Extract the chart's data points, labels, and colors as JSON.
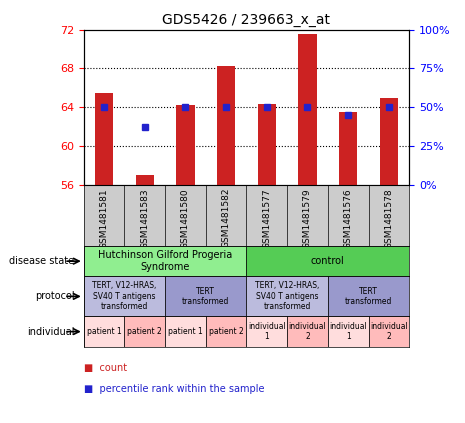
{
  "title": "GDS5426 / 239663_x_at",
  "samples": [
    "GSM1481581",
    "GSM1481583",
    "GSM1481580",
    "GSM1481582",
    "GSM1481577",
    "GSM1481579",
    "GSM1481576",
    "GSM1481578"
  ],
  "counts": [
    65.5,
    57.0,
    64.2,
    68.2,
    64.3,
    71.5,
    63.5,
    65.0
  ],
  "percentiles": [
    50,
    37,
    50,
    50,
    50,
    50,
    45,
    50
  ],
  "ylim": [
    56,
    72
  ],
  "y_ticks": [
    56,
    60,
    64,
    68,
    72
  ],
  "y2_ticks": [
    0,
    25,
    50,
    75,
    100
  ],
  "y2_ticklabels": [
    "0%",
    "25%",
    "50%",
    "75%",
    "100%"
  ],
  "disease_state": [
    {
      "label": "Hutchinson Gilford Progeria\nSyndrome",
      "start": 0,
      "end": 4,
      "color": "#90EE90"
    },
    {
      "label": "control",
      "start": 4,
      "end": 8,
      "color": "#55CC55"
    }
  ],
  "protocol": [
    {
      "label": "TERT, V12-HRAS,\nSV40 T antigens\ntransformed",
      "start": 0,
      "end": 2,
      "color": "#BBBBDD"
    },
    {
      "label": "TERT\ntransformed",
      "start": 2,
      "end": 4,
      "color": "#9999CC"
    },
    {
      "label": "TERT, V12-HRAS,\nSV40 T antigens\ntransformed",
      "start": 4,
      "end": 6,
      "color": "#BBBBDD"
    },
    {
      "label": "TERT\ntransformed",
      "start": 6,
      "end": 8,
      "color": "#9999CC"
    }
  ],
  "individual": [
    {
      "label": "patient 1",
      "start": 0,
      "end": 1,
      "color": "#FFDDDD"
    },
    {
      "label": "patient 2",
      "start": 1,
      "end": 2,
      "color": "#FFBBBB"
    },
    {
      "label": "patient 1",
      "start": 2,
      "end": 3,
      "color": "#FFDDDD"
    },
    {
      "label": "patient 2",
      "start": 3,
      "end": 4,
      "color": "#FFBBBB"
    },
    {
      "label": "individual\n1",
      "start": 4,
      "end": 5,
      "color": "#FFDDDD"
    },
    {
      "label": "individual\n2",
      "start": 5,
      "end": 6,
      "color": "#FFBBBB"
    },
    {
      "label": "individual\n1",
      "start": 6,
      "end": 7,
      "color": "#FFDDDD"
    },
    {
      "label": "individual\n2",
      "start": 7,
      "end": 8,
      "color": "#FFBBBB"
    }
  ],
  "bar_color": "#CC2222",
  "dot_color": "#2222CC",
  "bar_bottom": 56,
  "row_labels": [
    "disease state",
    "protocol",
    "individual"
  ],
  "legend_items": [
    {
      "label": "count",
      "color": "#CC2222"
    },
    {
      "label": "percentile rank within the sample",
      "color": "#2222CC"
    }
  ]
}
